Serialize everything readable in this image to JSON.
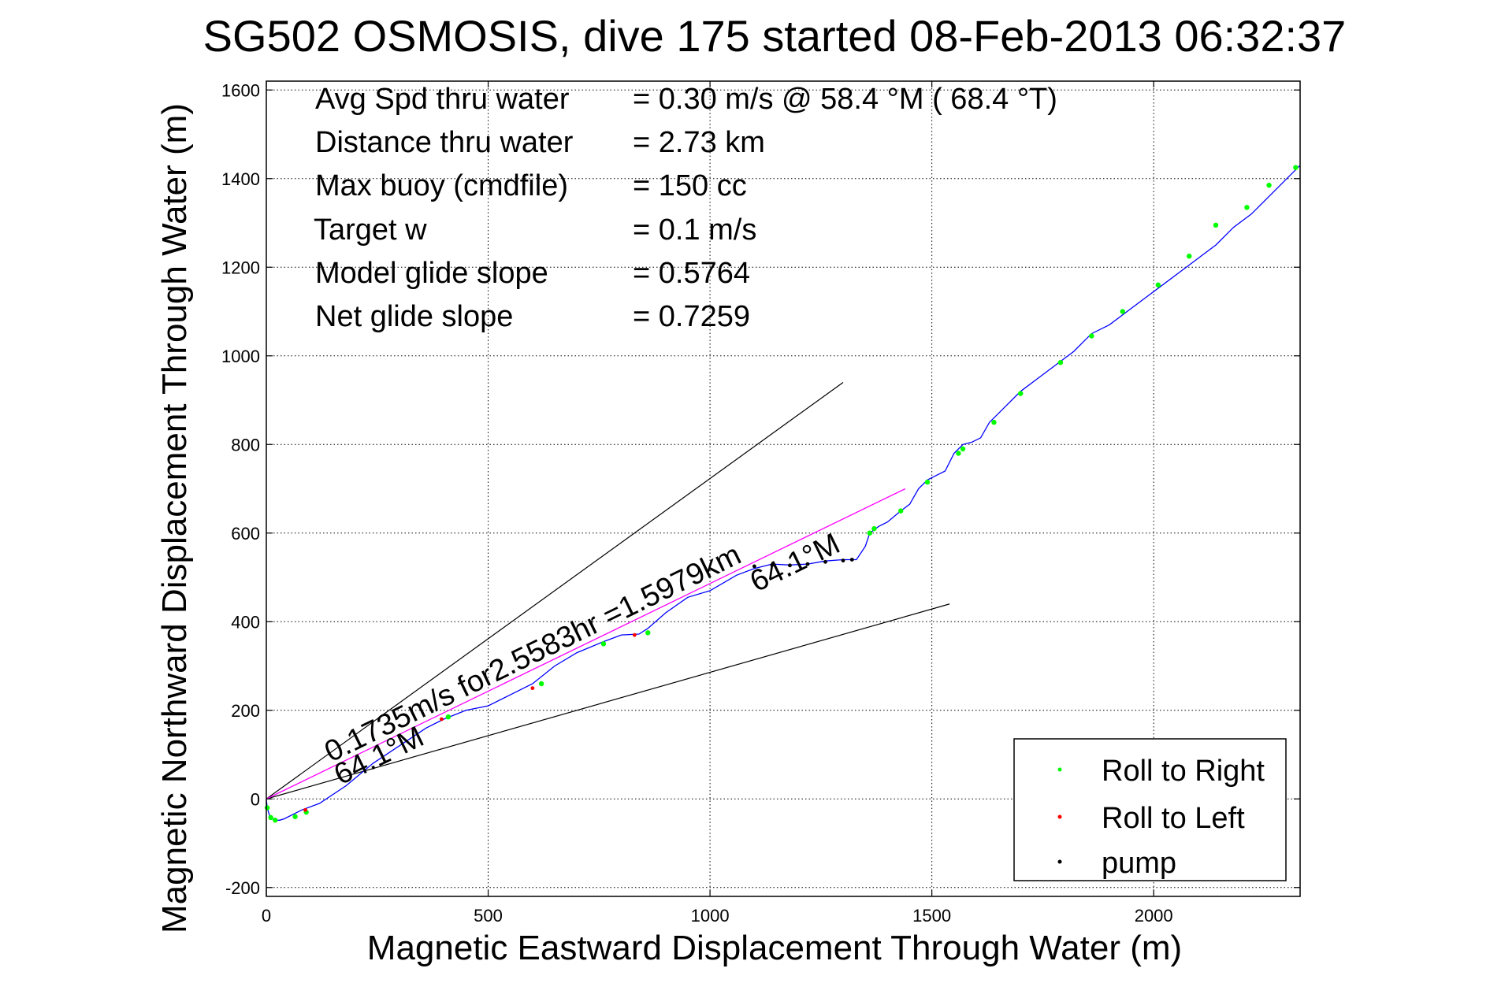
{
  "chart_data": {
    "type": "line",
    "title": "SG502 OSMOSIS, dive 175 started 08-Feb-2013 06:32:37",
    "xlabel": "Magnetic Eastward Displacement Through Water (m)",
    "ylabel": "Magnetic Northward Displacement Through Water (m)",
    "xlim": [
      0,
      2330
    ],
    "ylim": [
      -220,
      1620
    ],
    "xticks": [
      0,
      500,
      1000,
      1500,
      2000
    ],
    "yticks": [
      -200,
      0,
      200,
      400,
      600,
      800,
      1000,
      1200,
      1400,
      1600
    ],
    "grid": true,
    "annotations": {
      "rows": [
        {
          "label": "Avg Spd thru water",
          "value": "=  0.30 m/s @  58.4 °M ( 68.4 °T)"
        },
        {
          "label": "Distance thru water",
          "value": "=  2.73 km"
        },
        {
          "label": "Max buoy (cmdfile)",
          "value": "= 150 cc"
        },
        {
          "label": "Target w",
          "value": "= 0.1 m/s"
        },
        {
          "label": "Model glide slope",
          "value": "= 0.5764"
        },
        {
          "label": "Net glide slope",
          "value": "= 0.7259"
        }
      ],
      "current_text": "0.1735m/s for2.5583hr =1.5979km",
      "heading_lower": "64.1°M",
      "heading_upper": "64.1°M"
    },
    "legend": {
      "position": "bottom-right",
      "entries": [
        {
          "label": "Roll to Right",
          "color": "#00ff00"
        },
        {
          "label": "Roll to Left",
          "color": "#ff0000"
        },
        {
          "label": "pump",
          "color": "#000000"
        }
      ]
    },
    "lines": {
      "envelope_upper": {
        "x": [
          0,
          1300
        ],
        "y": [
          0,
          940
        ],
        "color": "#000000"
      },
      "envelope_lower": {
        "x": [
          0,
          1540
        ],
        "y": [
          0,
          440
        ],
        "color": "#000000"
      },
      "current_vector": {
        "x": [
          0,
          1440
        ],
        "y": [
          0,
          700
        ],
        "color": "#ff00ff"
      }
    },
    "track": {
      "name": "track",
      "color": "#0000ff",
      "x": [
        0,
        2,
        8,
        18,
        30,
        40,
        60,
        80,
        120,
        180,
        240,
        300,
        360,
        400,
        450,
        500,
        550,
        600,
        650,
        700,
        760,
        800,
        840,
        860,
        900,
        950,
        1000,
        1060,
        1100,
        1140,
        1180,
        1220,
        1260,
        1300,
        1330,
        1350,
        1360,
        1380,
        1400,
        1430,
        1450,
        1470,
        1490,
        1510,
        1530,
        1550,
        1570,
        1590,
        1610,
        1630,
        1650,
        1680,
        1700,
        1740,
        1780,
        1820,
        1860,
        1900,
        1940,
        1980,
        2020,
        2060,
        2100,
        2140,
        2180,
        2220,
        2260,
        2300,
        2330
      ],
      "y": [
        0,
        -20,
        -40,
        -48,
        -48,
        -45,
        -35,
        -25,
        -10,
        30,
        80,
        120,
        160,
        180,
        200,
        210,
        235,
        260,
        300,
        330,
        355,
        370,
        372,
        385,
        420,
        455,
        470,
        505,
        520,
        530,
        528,
        530,
        537,
        540,
        540,
        570,
        600,
        615,
        625,
        650,
        665,
        700,
        720,
        730,
        740,
        780,
        800,
        805,
        815,
        850,
        870,
        900,
        920,
        950,
        980,
        1010,
        1050,
        1070,
        1100,
        1130,
        1160,
        1190,
        1220,
        1250,
        1290,
        1320,
        1360,
        1400,
        1430
      ]
    },
    "markers": {
      "roll_right": {
        "x": [
          2,
          10,
          20,
          65,
          90,
          410,
          620,
          760,
          860,
          1360,
          1370,
          1430,
          1490,
          1560,
          1570,
          1640,
          1700,
          1790,
          1860,
          1930,
          2010,
          2080,
          2140,
          2210,
          2260,
          2320
        ],
        "y": [
          -20,
          -42,
          -48,
          -40,
          -30,
          185,
          260,
          350,
          375,
          600,
          610,
          650,
          715,
          780,
          790,
          850,
          915,
          985,
          1045,
          1100,
          1160,
          1225,
          1295,
          1335,
          1385,
          1425
        ]
      },
      "roll_left": {
        "x": [
          88,
          395,
          600,
          830
        ],
        "y": [
          -25,
          180,
          250,
          370
        ]
      },
      "pump": {
        "x": [
          1100,
          1140,
          1180,
          1220,
          1260,
          1300,
          1320
        ],
        "y": [
          525,
          528,
          527,
          530,
          535,
          538,
          540
        ]
      }
    }
  }
}
